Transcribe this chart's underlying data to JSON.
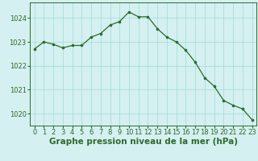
{
  "hours": [
    0,
    1,
    2,
    3,
    4,
    5,
    6,
    7,
    8,
    9,
    10,
    11,
    12,
    13,
    14,
    15,
    16,
    17,
    18,
    19,
    20,
    21,
    22,
    23
  ],
  "pressure": [
    1022.7,
    1023.0,
    1022.9,
    1022.75,
    1022.85,
    1022.85,
    1023.2,
    1023.35,
    1023.7,
    1023.85,
    1024.25,
    1024.05,
    1024.05,
    1023.55,
    1023.2,
    1023.0,
    1022.65,
    1022.15,
    1021.5,
    1021.15,
    1020.55,
    1020.35,
    1020.2,
    1019.75
  ],
  "line_color": "#2d6a2d",
  "marker_color": "#2d6a2d",
  "bg_color": "#d5f0f0",
  "grid_color": "#aadddd",
  "text_color": "#2d6a2d",
  "xlabel": "Graphe pression niveau de la mer (hPa)",
  "ylim": [
    1019.5,
    1024.65
  ],
  "yticks": [
    1020,
    1021,
    1022,
    1023,
    1024
  ],
  "xtick_labels": [
    "0",
    "1",
    "2",
    "3",
    "4",
    "5",
    "6",
    "7",
    "8",
    "9",
    "10",
    "11",
    "12",
    "13",
    "14",
    "15",
    "16",
    "17",
    "18",
    "19",
    "20",
    "21",
    "22",
    "23"
  ],
  "tick_fontsize": 6.0,
  "xlabel_fontsize": 7.5
}
